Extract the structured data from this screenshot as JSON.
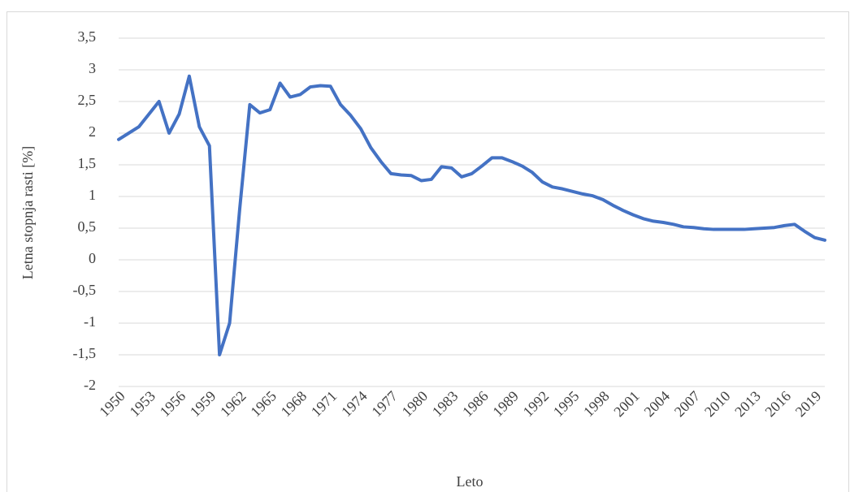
{
  "chart_data": {
    "type": "line",
    "x_label": "Leto",
    "y_label": "Letna stopnja rasti [%]",
    "x": [
      1950,
      1951,
      1952,
      1953,
      1954,
      1955,
      1956,
      1957,
      1958,
      1959,
      1960,
      1961,
      1962,
      1963,
      1964,
      1965,
      1966,
      1967,
      1968,
      1969,
      1970,
      1971,
      1972,
      1973,
      1974,
      1975,
      1976,
      1977,
      1978,
      1979,
      1980,
      1981,
      1982,
      1983,
      1984,
      1985,
      1986,
      1987,
      1988,
      1989,
      1990,
      1991,
      1992,
      1993,
      1994,
      1995,
      1996,
      1997,
      1998,
      1999,
      2000,
      2001,
      2002,
      2003,
      2004,
      2005,
      2006,
      2007,
      2008,
      2009,
      2010,
      2011,
      2012,
      2013,
      2014,
      2015,
      2016,
      2017,
      2018,
      2019,
      2020
    ],
    "values": [
      1.9,
      2.0,
      2.1,
      2.3,
      2.5,
      2.0,
      2.3,
      2.9,
      2.1,
      1.8,
      -1.5,
      -1.0,
      0.8,
      2.45,
      2.32,
      2.37,
      2.79,
      2.57,
      2.61,
      2.73,
      2.75,
      2.74,
      2.45,
      2.28,
      2.07,
      1.77,
      1.55,
      1.36,
      1.34,
      1.33,
      1.25,
      1.27,
      1.47,
      1.45,
      1.31,
      1.36,
      1.48,
      1.61,
      1.61,
      1.55,
      1.48,
      1.38,
      1.23,
      1.15,
      1.12,
      1.08,
      1.04,
      1.01,
      0.95,
      0.86,
      0.78,
      0.71,
      0.65,
      0.61,
      0.59,
      0.56,
      0.52,
      0.51,
      0.49,
      0.48,
      0.48,
      0.48,
      0.48,
      0.49,
      0.5,
      0.51,
      0.54,
      0.56,
      0.45,
      0.35,
      0.31
    ],
    "color": "#4472c4",
    "xlim": [
      1950,
      2020
    ],
    "xticks": [
      1950,
      1953,
      1956,
      1959,
      1962,
      1965,
      1968,
      1971,
      1974,
      1977,
      1980,
      1983,
      1986,
      1989,
      1992,
      1995,
      1998,
      2001,
      2004,
      2007,
      2010,
      2013,
      2016,
      2019
    ],
    "ylim": [
      -2,
      3.5
    ],
    "yticks": [
      -2,
      {
        "value": -1.5,
        "label": "-1,5"
      },
      -1,
      {
        "value": -0.5,
        "label": "-0,5"
      },
      0,
      {
        "value": 0.5,
        "label": "0,5"
      },
      1,
      {
        "value": 1.5,
        "label": "1,5"
      },
      2,
      {
        "value": 2.5,
        "label": "2,5"
      },
      3,
      {
        "value": 3.5,
        "label": "3,5"
      }
    ],
    "grid": true
  }
}
